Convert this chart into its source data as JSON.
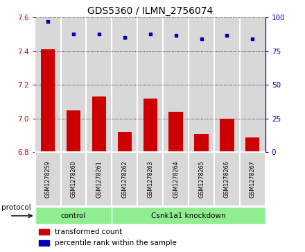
{
  "title": "GDS5360 / ILMN_2756074",
  "samples": [
    "GSM1278259",
    "GSM1278260",
    "GSM1278261",
    "GSM1278262",
    "GSM1278263",
    "GSM1278264",
    "GSM1278265",
    "GSM1278266",
    "GSM1278267"
  ],
  "bar_values": [
    7.41,
    7.05,
    7.13,
    6.92,
    7.12,
    7.04,
    6.91,
    7.0,
    6.89
  ],
  "scatter_values": [
    97,
    88,
    88,
    85,
    88,
    87,
    84,
    87,
    84
  ],
  "ylim_left": [
    6.8,
    7.6
  ],
  "ylim_right": [
    0,
    100
  ],
  "yticks_left": [
    6.8,
    7.0,
    7.2,
    7.4,
    7.6
  ],
  "yticks_right": [
    0,
    25,
    50,
    75,
    100
  ],
  "bar_color": "#cc0000",
  "scatter_color": "#0000bb",
  "bar_bottom": 6.8,
  "control_label": "control",
  "knockdown_label": "Csnk1a1 knockdown",
  "control_count": 3,
  "protocol_label": "protocol",
  "legend_bar": "transformed count",
  "legend_scatter": "percentile rank within the sample",
  "cell_bg": "#d8d8d8",
  "proto_bg": "#90ee90",
  "title_fontsize": 10,
  "tick_fontsize": 7.5,
  "label_fontsize": 7
}
